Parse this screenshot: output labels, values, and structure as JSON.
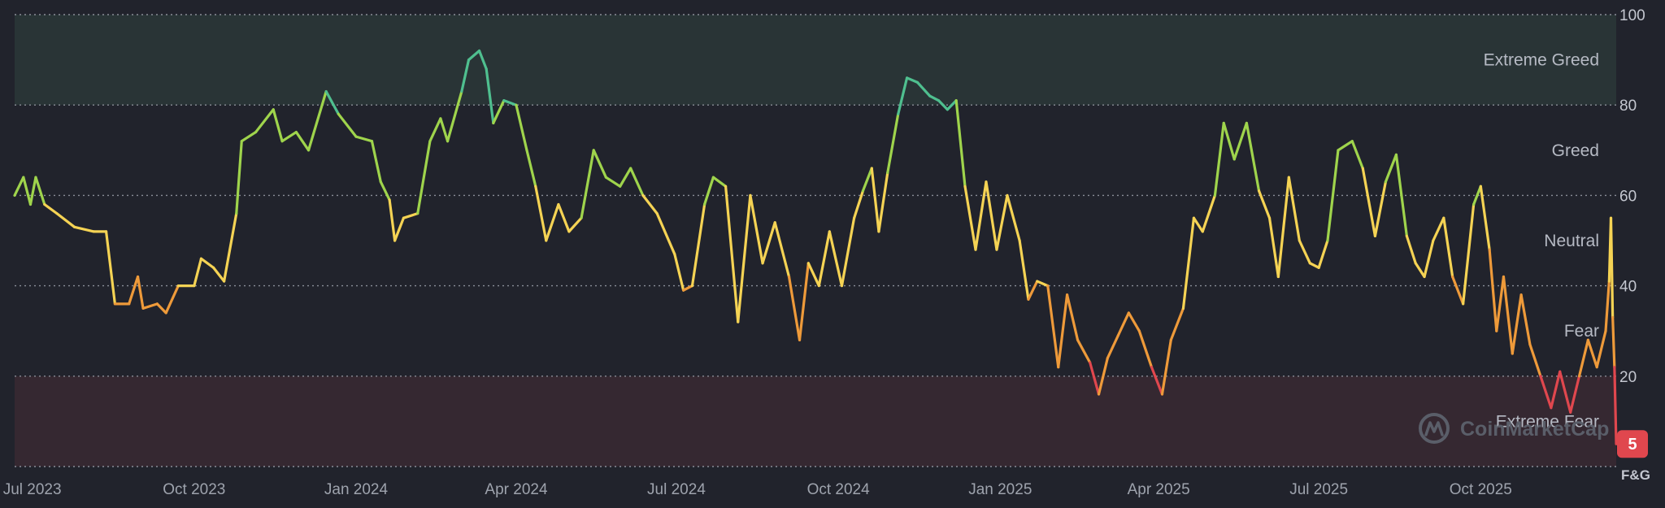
{
  "chart_data": {
    "type": "line",
    "title": "",
    "axis_title": "F&G",
    "ylim": [
      0,
      100
    ],
    "y_ticks": [
      "100",
      "80",
      "60",
      "40",
      "20"
    ],
    "x_ticks": [
      "Jul 2023",
      "Oct 2023",
      "Jan 2024",
      "Apr 2024",
      "Jul 2024",
      "Oct 2024",
      "Jan 2025",
      "Apr 2025",
      "Jul 2025",
      "Oct 2025"
    ],
    "x_range": [
      "2023-06-21",
      "2025-12-17"
    ],
    "zones": [
      {
        "label": "Extreme Greed",
        "from": 80,
        "to": 100
      },
      {
        "label": "Greed",
        "from": 60,
        "to": 80
      },
      {
        "label": "Neutral",
        "from": 40,
        "to": 60
      },
      {
        "label": "Fear",
        "from": 20,
        "to": 40
      },
      {
        "label": "Extreme Fear",
        "from": 0,
        "to": 20
      }
    ],
    "current_value": "5",
    "watermark": "CoinMarketCap",
    "colors": {
      "extreme_greed": "#4fbf8f",
      "greed": "#9fd44c",
      "neutral": "#f5d354",
      "fear": "#ee9a3a",
      "extreme_fear": "#e0474e",
      "badge": "#e0474e"
    },
    "series": [
      {
        "points": [
          [
            "2023-06-21",
            60
          ],
          [
            "2023-06-26",
            64
          ],
          [
            "2023-06-30",
            58
          ],
          [
            "2023-07-03",
            64
          ],
          [
            "2023-07-08",
            58
          ],
          [
            "2023-07-15",
            56
          ],
          [
            "2023-07-25",
            53
          ],
          [
            "2023-08-05",
            52
          ],
          [
            "2023-08-12",
            52
          ],
          [
            "2023-08-17",
            36
          ],
          [
            "2023-08-25",
            36
          ],
          [
            "2023-08-30",
            42
          ],
          [
            "2023-09-02",
            35
          ],
          [
            "2023-09-10",
            36
          ],
          [
            "2023-09-15",
            34
          ],
          [
            "2023-09-22",
            40
          ],
          [
            "2023-10-01",
            40
          ],
          [
            "2023-10-05",
            46
          ],
          [
            "2023-10-12",
            44
          ],
          [
            "2023-10-18",
            41
          ],
          [
            "2023-10-25",
            56
          ],
          [
            "2023-10-28",
            72
          ],
          [
            "2023-11-05",
            74
          ],
          [
            "2023-11-15",
            79
          ],
          [
            "2023-11-20",
            72
          ],
          [
            "2023-11-28",
            74
          ],
          [
            "2023-12-05",
            70
          ],
          [
            "2023-12-15",
            83
          ],
          [
            "2023-12-22",
            78
          ],
          [
            "2024-01-01",
            73
          ],
          [
            "2024-01-10",
            72
          ],
          [
            "2024-01-15",
            63
          ],
          [
            "2024-01-20",
            59
          ],
          [
            "2024-01-23",
            50
          ],
          [
            "2024-01-28",
            55
          ],
          [
            "2024-02-05",
            56
          ],
          [
            "2024-02-12",
            72
          ],
          [
            "2024-02-18",
            77
          ],
          [
            "2024-02-22",
            72
          ],
          [
            "2024-03-01",
            83
          ],
          [
            "2024-03-05",
            90
          ],
          [
            "2024-03-11",
            92
          ],
          [
            "2024-03-15",
            88
          ],
          [
            "2024-03-19",
            76
          ],
          [
            "2024-03-25",
            81
          ],
          [
            "2024-04-01",
            80
          ],
          [
            "2024-04-07",
            70
          ],
          [
            "2024-04-12",
            62
          ],
          [
            "2024-04-18",
            50
          ],
          [
            "2024-04-25",
            58
          ],
          [
            "2024-05-01",
            52
          ],
          [
            "2024-05-08",
            55
          ],
          [
            "2024-05-15",
            70
          ],
          [
            "2024-05-22",
            64
          ],
          [
            "2024-05-30",
            62
          ],
          [
            "2024-06-05",
            66
          ],
          [
            "2024-06-12",
            60
          ],
          [
            "2024-06-20",
            56
          ],
          [
            "2024-06-30",
            47
          ],
          [
            "2024-07-05",
            39
          ],
          [
            "2024-07-10",
            40
          ],
          [
            "2024-07-17",
            58
          ],
          [
            "2024-07-22",
            64
          ],
          [
            "2024-07-29",
            62
          ],
          [
            "2024-08-05",
            32
          ],
          [
            "2024-08-12",
            60
          ],
          [
            "2024-08-19",
            45
          ],
          [
            "2024-08-26",
            54
          ],
          [
            "2024-09-03",
            42
          ],
          [
            "2024-09-09",
            28
          ],
          [
            "2024-09-14",
            45
          ],
          [
            "2024-09-20",
            40
          ],
          [
            "2024-09-26",
            52
          ],
          [
            "2024-10-03",
            40
          ],
          [
            "2024-10-10",
            55
          ],
          [
            "2024-10-15",
            61
          ],
          [
            "2024-10-20",
            66
          ],
          [
            "2024-10-24",
            52
          ],
          [
            "2024-10-29",
            65
          ],
          [
            "2024-11-04",
            78
          ],
          [
            "2024-11-09",
            86
          ],
          [
            "2024-11-15",
            85
          ],
          [
            "2024-11-22",
            82
          ],
          [
            "2024-11-27",
            81
          ],
          [
            "2024-12-02",
            79
          ],
          [
            "2024-12-07",
            81
          ],
          [
            "2024-12-12",
            62
          ],
          [
            "2024-12-18",
            48
          ],
          [
            "2024-12-24",
            63
          ],
          [
            "2024-12-30",
            48
          ],
          [
            "2025-01-05",
            60
          ],
          [
            "2025-01-12",
            50
          ],
          [
            "2025-01-17",
            37
          ],
          [
            "2025-01-22",
            41
          ],
          [
            "2025-01-28",
            40
          ],
          [
            "2025-02-03",
            22
          ],
          [
            "2025-02-08",
            38
          ],
          [
            "2025-02-14",
            28
          ],
          [
            "2025-02-21",
            23
          ],
          [
            "2025-02-26",
            16
          ],
          [
            "2025-03-03",
            24
          ],
          [
            "2025-03-09",
            29
          ],
          [
            "2025-03-15",
            34
          ],
          [
            "2025-03-21",
            30
          ],
          [
            "2025-03-28",
            22
          ],
          [
            "2025-04-03",
            16
          ],
          [
            "2025-04-08",
            28
          ],
          [
            "2025-04-15",
            35
          ],
          [
            "2025-04-21",
            55
          ],
          [
            "2025-04-26",
            52
          ],
          [
            "2025-05-03",
            60
          ],
          [
            "2025-05-08",
            76
          ],
          [
            "2025-05-14",
            68
          ],
          [
            "2025-05-21",
            76
          ],
          [
            "2025-05-28",
            61
          ],
          [
            "2025-06-03",
            55
          ],
          [
            "2025-06-08",
            42
          ],
          [
            "2025-06-14",
            64
          ],
          [
            "2025-06-20",
            50
          ],
          [
            "2025-06-26",
            45
          ],
          [
            "2025-07-01",
            44
          ],
          [
            "2025-07-06",
            50
          ],
          [
            "2025-07-12",
            70
          ],
          [
            "2025-07-20",
            72
          ],
          [
            "2025-07-26",
            66
          ],
          [
            "2025-08-02",
            51
          ],
          [
            "2025-08-08",
            63
          ],
          [
            "2025-08-14",
            69
          ],
          [
            "2025-08-20",
            51
          ],
          [
            "2025-08-25",
            45
          ],
          [
            "2025-08-30",
            42
          ],
          [
            "2025-09-04",
            50
          ],
          [
            "2025-09-10",
            55
          ],
          [
            "2025-09-15",
            42
          ],
          [
            "2025-09-21",
            36
          ],
          [
            "2025-09-27",
            58
          ],
          [
            "2025-10-01",
            62
          ],
          [
            "2025-10-06",
            48
          ],
          [
            "2025-10-10",
            30
          ],
          [
            "2025-10-14",
            42
          ],
          [
            "2025-10-19",
            25
          ],
          [
            "2025-10-24",
            38
          ],
          [
            "2025-10-29",
            27
          ],
          [
            "2025-11-04",
            20
          ],
          [
            "2025-11-10",
            13
          ],
          [
            "2025-11-15",
            21
          ],
          [
            "2025-11-21",
            12
          ],
          [
            "2025-11-26",
            20
          ],
          [
            "2025-12-01",
            28
          ],
          [
            "2025-12-06",
            22
          ],
          [
            "2025-12-11",
            30
          ],
          [
            "2025-12-13",
            41
          ],
          [
            "2025-12-14",
            55
          ],
          [
            "2025-12-15",
            33
          ],
          [
            "2025-12-16",
            22
          ],
          [
            "2025-12-17",
            5
          ]
        ]
      }
    ]
  }
}
